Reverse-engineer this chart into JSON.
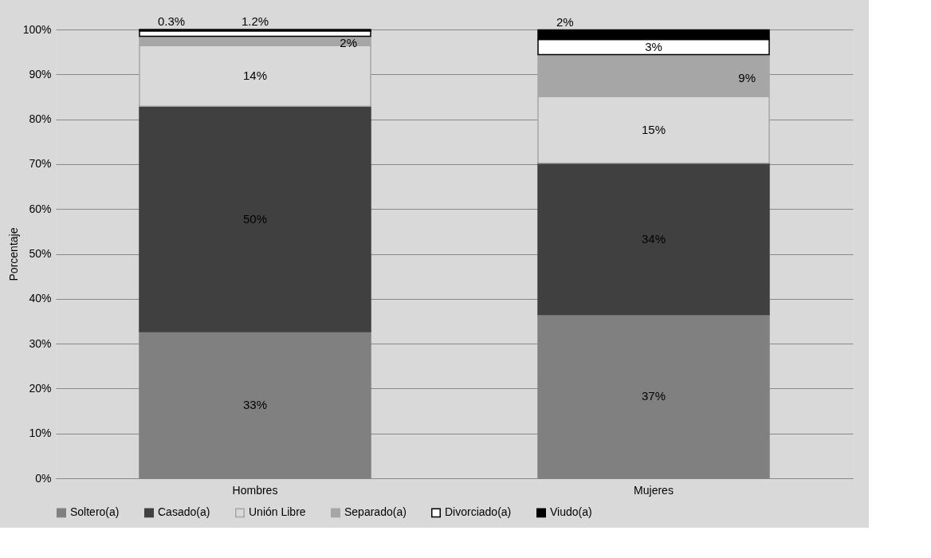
{
  "chart_data": {
    "type": "bar",
    "stacked": true,
    "ylabel": "Porcentaje",
    "categories": [
      "Hombres",
      "Mujeres"
    ],
    "series": [
      {
        "name": "Soltero(a)",
        "color": "#808080",
        "values": [
          32.7,
          36.5
        ],
        "value_labels": [
          "33%",
          "37%"
        ]
      },
      {
        "name": "Casado(a)",
        "color": "#404040",
        "values": [
          50.2,
          33.7
        ],
        "value_labels": [
          "50%",
          "34%"
        ]
      },
      {
        "name": "Unión Libre",
        "color": "#d9d9d9",
        "values": [
          13.5,
          14.9
        ],
        "value_labels": [
          "14%",
          "15%"
        ]
      },
      {
        "name": "Separado(a)",
        "color": "#a6a6a6",
        "values": [
          2.1,
          9.3
        ],
        "value_labels": [
          "2%",
          "9%"
        ]
      },
      {
        "name": "Divorciado(a)",
        "color": "#ffffff",
        "values": [
          1.2,
          3.4
        ],
        "value_labels": [
          "1.2%",
          "3%"
        ]
      },
      {
        "name": "Viudo(a)",
        "color": "#000000",
        "values": [
          0.3,
          2.1
        ],
        "value_labels": [
          "0.3%",
          "2%"
        ]
      }
    ],
    "ylim": [
      0,
      100
    ],
    "yticks": [
      {
        "value": 0,
        "label": "0%"
      },
      {
        "value": 10,
        "label": "10%"
      },
      {
        "value": 20,
        "label": "20%"
      },
      {
        "value": 30,
        "label": "30%"
      },
      {
        "value": 40,
        "label": "40%"
      },
      {
        "value": 50,
        "label": "50%"
      },
      {
        "value": 60,
        "label": "60%"
      },
      {
        "value": 70,
        "label": "70%"
      },
      {
        "value": 80,
        "label": "80%"
      },
      {
        "value": 90,
        "label": "90%"
      },
      {
        "value": 100,
        "label": "100%"
      }
    ],
    "grid": "y",
    "legend": "bottom"
  }
}
